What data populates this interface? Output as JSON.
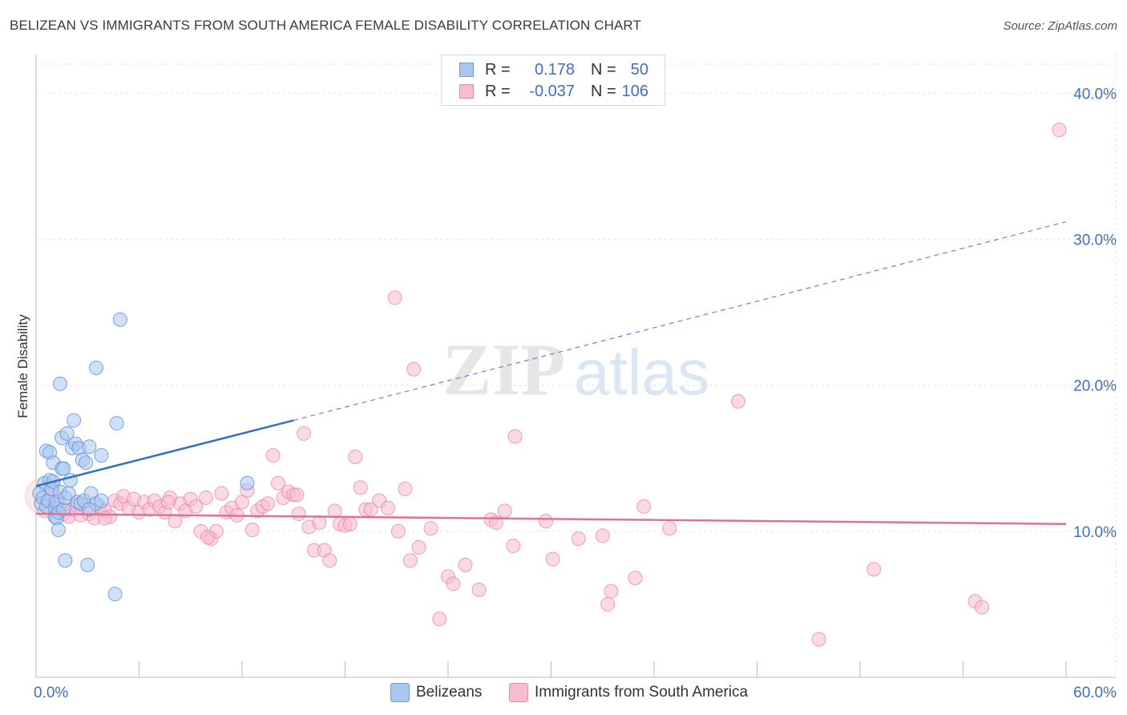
{
  "title": "BELIZEAN VS IMMIGRANTS FROM SOUTH AMERICA FEMALE DISABILITY CORRELATION CHART",
  "source": "Source: ZipAtlas.com",
  "watermark": {
    "zip": "ZIP",
    "atlas": "atlas"
  },
  "legend": {
    "rows": [
      {
        "r_label": "R =",
        "r_value": "0.178",
        "n_label": "N =",
        "n_value": "50",
        "color": "#a9c8f0",
        "border": "#6b9ee0"
      },
      {
        "r_label": "R =",
        "r_value": "-0.037",
        "n_label": "N =",
        "n_value": "106",
        "color": "#f7bcd0",
        "border": "#e88aab"
      }
    ]
  },
  "bottom_legend": [
    {
      "label": "Belizeans",
      "color": "#a9c8f0",
      "border": "#6b9ee0"
    },
    {
      "label": "Immigrants from South America",
      "color": "#f7bcd0",
      "border": "#e88aab"
    }
  ],
  "chart_data": {
    "type": "scatter",
    "title": "BELIZEAN VS IMMIGRANTS FROM SOUTH AMERICA FEMALE DISABILITY CORRELATION CHART",
    "xlabel": "",
    "ylabel": "Female Disability",
    "xlim": [
      0,
      60
    ],
    "ylim": [
      0,
      42
    ],
    "x_tick_labels": [
      "0.0%",
      "60.0%"
    ],
    "y_ticks": [
      10,
      20,
      30,
      40
    ],
    "y_tick_labels": [
      "10.0%",
      "20.0%",
      "30.0%",
      "40.0%"
    ],
    "grid": true,
    "colors": {
      "belizeans": "#6b9ee0",
      "immigrants": "#e8799f",
      "blue_line": "#2f72c8",
      "pink_line": "#e0709a"
    },
    "series": [
      {
        "name": "Belizeans",
        "trend": {
          "x0": 0,
          "y0": 13.1,
          "x1": 15,
          "y1": 17.6,
          "x_dash_end": 60,
          "y_dash_end": 31.2
        },
        "points": [
          [
            0.2,
            12.6
          ],
          [
            0.3,
            11.9
          ],
          [
            0.4,
            12.3
          ],
          [
            0.5,
            13.3
          ],
          [
            0.6,
            15.5
          ],
          [
            0.6,
            11.7
          ],
          [
            0.7,
            12.1
          ],
          [
            0.8,
            13.5
          ],
          [
            0.8,
            15.4
          ],
          [
            0.9,
            12.9
          ],
          [
            1.0,
            14.7
          ],
          [
            1.0,
            13.4
          ],
          [
            1.1,
            11.0
          ],
          [
            1.1,
            11.6
          ],
          [
            1.2,
            10.9
          ],
          [
            1.2,
            12.0
          ],
          [
            1.3,
            10.1
          ],
          [
            1.3,
            11.3
          ],
          [
            1.4,
            12.7
          ],
          [
            1.4,
            20.1
          ],
          [
            1.5,
            14.3
          ],
          [
            1.5,
            16.4
          ],
          [
            1.6,
            11.5
          ],
          [
            1.6,
            14.3
          ],
          [
            1.7,
            12.3
          ],
          [
            1.7,
            8.0
          ],
          [
            1.8,
            16.7
          ],
          [
            1.9,
            12.6
          ],
          [
            2.0,
            13.5
          ],
          [
            2.1,
            15.7
          ],
          [
            2.2,
            17.6
          ],
          [
            2.3,
            16.0
          ],
          [
            2.4,
            12.0
          ],
          [
            2.5,
            15.7
          ],
          [
            2.6,
            11.9
          ],
          [
            2.7,
            14.9
          ],
          [
            2.8,
            12.1
          ],
          [
            2.9,
            14.7
          ],
          [
            3.0,
            7.7
          ],
          [
            3.1,
            15.8
          ],
          [
            3.2,
            12.6
          ],
          [
            3.5,
            11.9
          ],
          [
            3.8,
            12.1
          ],
          [
            3.1,
            11.5
          ],
          [
            3.5,
            21.2
          ],
          [
            3.8,
            15.2
          ],
          [
            4.6,
            5.7
          ],
          [
            4.7,
            17.4
          ],
          [
            4.9,
            24.5
          ],
          [
            12.3,
            13.3
          ]
        ]
      },
      {
        "name": "Immigrants from South America",
        "trend": {
          "x0": 0,
          "y0": 11.2,
          "x1": 60,
          "y1": 10.5
        },
        "points": [
          [
            0.5,
            11.4
          ],
          [
            0.7,
            12.3
          ],
          [
            0.9,
            12.7
          ],
          [
            1.0,
            13.2
          ],
          [
            1.2,
            11.6
          ],
          [
            1.4,
            11.8
          ],
          [
            1.6,
            11.2
          ],
          [
            1.9,
            11.0
          ],
          [
            2.1,
            11.5
          ],
          [
            2.4,
            11.8
          ],
          [
            2.6,
            11.1
          ],
          [
            2.9,
            11.6
          ],
          [
            3.1,
            11.2
          ],
          [
            3.4,
            10.9
          ],
          [
            3.7,
            11.7
          ],
          [
            4.0,
            11.4
          ],
          [
            4.3,
            11.0
          ],
          [
            4.6,
            12.1
          ],
          [
            4.9,
            11.9
          ],
          [
            5.1,
            12.4
          ],
          [
            5.4,
            11.6
          ],
          [
            5.7,
            12.2
          ],
          [
            6.0,
            11.3
          ],
          [
            6.3,
            12.0
          ],
          [
            6.6,
            11.5
          ],
          [
            6.9,
            12.1
          ],
          [
            7.2,
            11.7
          ],
          [
            7.5,
            11.3
          ],
          [
            7.8,
            12.3
          ],
          [
            8.1,
            10.7
          ],
          [
            8.4,
            11.9
          ],
          [
            8.7,
            11.4
          ],
          [
            9.0,
            12.2
          ],
          [
            9.3,
            11.7
          ],
          [
            9.6,
            10.0
          ],
          [
            9.9,
            12.3
          ],
          [
            10.2,
            9.5
          ],
          [
            10.5,
            10.0
          ],
          [
            10.8,
            12.6
          ],
          [
            11.1,
            11.3
          ],
          [
            11.4,
            11.6
          ],
          [
            11.7,
            11.1
          ],
          [
            12.0,
            12.0
          ],
          [
            12.3,
            12.8
          ],
          [
            12.6,
            10.1
          ],
          [
            12.9,
            11.4
          ],
          [
            13.2,
            11.7
          ],
          [
            13.5,
            11.9
          ],
          [
            13.8,
            15.2
          ],
          [
            14.1,
            13.3
          ],
          [
            14.4,
            12.3
          ],
          [
            14.7,
            12.7
          ],
          [
            15.0,
            12.5
          ],
          [
            15.3,
            11.2
          ],
          [
            15.6,
            16.7
          ],
          [
            15.9,
            10.3
          ],
          [
            16.2,
            8.7
          ],
          [
            16.5,
            10.6
          ],
          [
            16.8,
            8.7
          ],
          [
            17.1,
            8.0
          ],
          [
            17.4,
            11.4
          ],
          [
            17.7,
            10.5
          ],
          [
            18.0,
            10.4
          ],
          [
            18.3,
            10.5
          ],
          [
            18.6,
            15.1
          ],
          [
            18.9,
            13.0
          ],
          [
            19.2,
            11.5
          ],
          [
            19.5,
            11.5
          ],
          [
            20.0,
            12.1
          ],
          [
            20.5,
            11.6
          ],
          [
            20.9,
            26.0
          ],
          [
            21.1,
            10.0
          ],
          [
            21.5,
            12.9
          ],
          [
            21.8,
            8.0
          ],
          [
            22.0,
            21.1
          ],
          [
            22.3,
            8.9
          ],
          [
            23.0,
            10.2
          ],
          [
            23.5,
            4.0
          ],
          [
            24.0,
            6.9
          ],
          [
            24.3,
            6.4
          ],
          [
            25.0,
            7.7
          ],
          [
            25.8,
            6.0
          ],
          [
            26.5,
            10.8
          ],
          [
            26.8,
            10.6
          ],
          [
            27.3,
            11.4
          ],
          [
            27.8,
            9.0
          ],
          [
            27.9,
            16.5
          ],
          [
            29.7,
            10.7
          ],
          [
            30.1,
            8.1
          ],
          [
            31.6,
            9.5
          ],
          [
            33.0,
            9.7
          ],
          [
            33.3,
            5.0
          ],
          [
            33.5,
            5.9
          ],
          [
            34.9,
            6.8
          ],
          [
            35.4,
            11.7
          ],
          [
            36.9,
            10.2
          ],
          [
            40.9,
            18.9
          ],
          [
            45.6,
            2.6
          ],
          [
            48.8,
            7.4
          ],
          [
            54.7,
            5.2
          ],
          [
            55.1,
            4.8
          ],
          [
            59.6,
            37.5
          ],
          [
            4.0,
            10.9
          ],
          [
            7.7,
            12.0
          ],
          [
            10.0,
            9.6
          ],
          [
            15.2,
            12.5
          ]
        ]
      }
    ]
  }
}
